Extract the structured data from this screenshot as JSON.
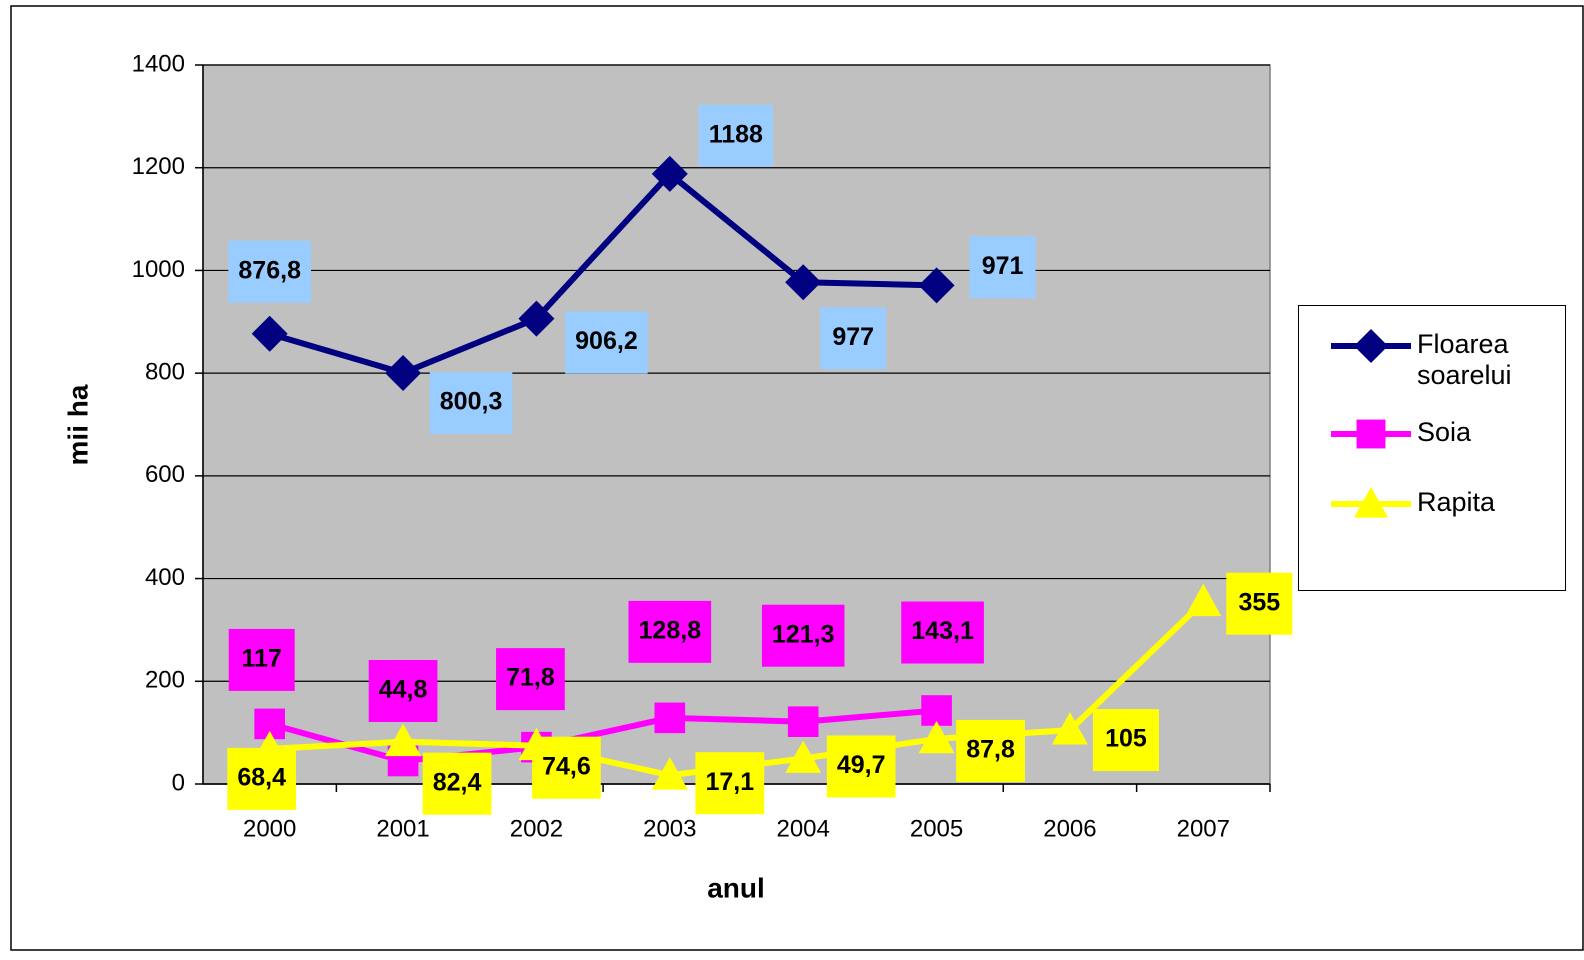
{
  "chart_data": {
    "type": "line",
    "y_label": "mii ha",
    "x_label": "anul",
    "categories": [
      "2000",
      "2001",
      "2002",
      "2003",
      "2004",
      "2005",
      "2006",
      "2007"
    ],
    "ylim": [
      0,
      1400
    ],
    "yticks": [
      0,
      200,
      400,
      600,
      800,
      1000,
      1200,
      1400
    ],
    "grid": true,
    "legend": "right",
    "series": [
      {
        "name": "Floarea soarelui",
        "color": "#000080",
        "marker": "diamond",
        "label_color": "#99ccff",
        "values": [
          876.8,
          800.3,
          906.2,
          1188,
          977,
          971,
          null,
          null
        ],
        "value_labels": [
          "876,8",
          "800,3",
          "906,2",
          "1188",
          "977",
          "971",
          null,
          null
        ]
      },
      {
        "name": "Soia",
        "color": "#ff00ff",
        "marker": "square",
        "label_color": "#ff00ff",
        "values": [
          117,
          44.8,
          71.8,
          128.8,
          121.3,
          143.1,
          null,
          null
        ],
        "value_labels": [
          "117",
          "44,8",
          "71,8",
          "128,8",
          "121,3",
          "143,1",
          null,
          null
        ]
      },
      {
        "name": "Rapita",
        "color": "#ffff00",
        "marker": "triangle",
        "label_color": "#ffff00",
        "values": [
          68.4,
          82.4,
          74.6,
          17.1,
          49.7,
          87.8,
          105,
          355
        ],
        "value_labels": [
          "68,4",
          "82,4",
          "74,6",
          "17,1",
          "49,7",
          "87,8",
          "105",
          "355"
        ]
      }
    ]
  }
}
